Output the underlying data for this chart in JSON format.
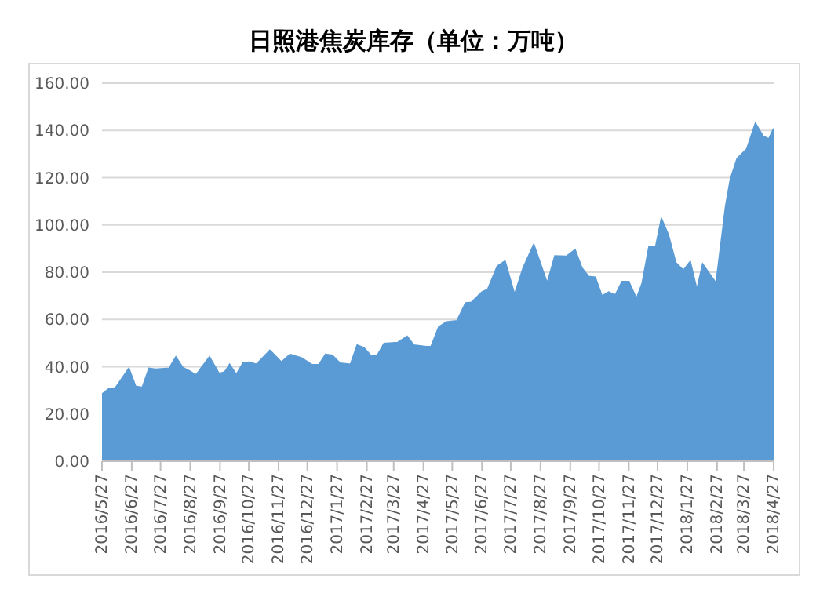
{
  "chart_data": {
    "type": "area",
    "title": "日照港焦炭库存（单位：万吨）",
    "x": [
      "2016-05-27",
      "2016-06-03",
      "2016-06-10",
      "2016-06-24",
      "2016-07-01",
      "2016-07-08",
      "2016-07-15",
      "2016-07-22",
      "2016-08-05",
      "2016-08-12",
      "2016-08-19",
      "2016-08-26",
      "2016-09-02",
      "2016-09-16",
      "2016-09-26",
      "2016-10-02",
      "2016-10-07",
      "2016-10-14",
      "2016-10-21",
      "2016-10-27",
      "2016-11-04",
      "2016-11-18",
      "2016-11-30",
      "2016-12-09",
      "2016-12-21",
      "2017-01-01",
      "2017-01-08",
      "2017-01-15",
      "2017-01-22",
      "2017-01-30",
      "2017-02-10",
      "2017-02-17",
      "2017-02-24",
      "2017-03-03",
      "2017-03-10",
      "2017-03-17",
      "2017-03-31",
      "2017-04-10",
      "2017-04-17",
      "2017-04-30",
      "2017-05-05",
      "2017-05-13",
      "2017-05-21",
      "2017-06-01",
      "2017-06-10",
      "2017-06-16",
      "2017-06-27",
      "2017-07-03",
      "2017-07-13",
      "2017-07-21",
      "2017-07-31",
      "2017-08-09",
      "2017-08-20",
      "2017-09-03",
      "2017-09-11",
      "2017-09-23",
      "2017-10-02",
      "2017-10-09",
      "2017-10-16",
      "2017-10-23",
      "2017-10-30",
      "2017-11-06",
      "2017-11-13",
      "2017-11-20",
      "2017-11-27",
      "2017-12-05",
      "2017-12-11",
      "2017-12-18",
      "2017-12-25",
      "2017-12-31",
      "2018-01-07",
      "2018-01-15",
      "2018-01-23",
      "2018-01-30",
      "2018-02-06",
      "2018-02-12",
      "2018-02-26",
      "2018-03-08",
      "2018-03-13",
      "2018-03-20",
      "2018-03-30",
      "2018-04-08",
      "2018-04-16",
      "2018-04-22",
      "2018-04-27"
    ],
    "values": [
      28.4,
      30.6,
      31,
      39.3,
      31.7,
      31.2,
      39.3,
      38.9,
      39.3,
      44.1,
      39.7,
      38.2,
      36.5,
      44.1,
      37.1,
      37.8,
      41,
      36.7,
      41.5,
      41.9,
      41,
      46.9,
      41.9,
      45.2,
      43.7,
      40.8,
      40.8,
      45.2,
      44.8,
      41.5,
      41,
      49.1,
      48,
      44.8,
      44.8,
      49.8,
      50.2,
      52.8,
      49.1,
      48.5,
      48.5,
      56.8,
      58.9,
      59.4,
      67,
      67.2,
      71.6,
      72.7,
      82.5,
      84.7,
      70.5,
      81.9,
      91.7,
      75.3,
      86.9,
      86.7,
      89.5,
      81.9,
      78.2,
      77.9,
      69.9,
      71.6,
      70.3,
      76,
      76,
      68.8,
      75.3,
      90.6,
      90.6,
      102.6,
      96.1,
      84,
      80.8,
      84.5,
      72.5,
      83.4,
      75.3,
      108,
      119.4,
      128.1,
      132.1,
      143,
      137.5,
      136.4,
      140.8
    ],
    "color": "#5b9bd5",
    "xlim": [
      "2016-05-27",
      "2018-04-27"
    ],
    "xticks": [
      {
        "value": "2016-05-27",
        "label": "2016/5/27"
      },
      {
        "value": "2016-06-27",
        "label": "2016/6/27"
      },
      {
        "value": "2016-07-27",
        "label": "2016/7/27"
      },
      {
        "value": "2016-08-27",
        "label": "2016/8/27"
      },
      {
        "value": "2016-09-27",
        "label": "2016/9/27"
      },
      {
        "value": "2016-10-27",
        "label": "2016/10/27"
      },
      {
        "value": "2016-11-27",
        "label": "2016/11/27"
      },
      {
        "value": "2016-12-27",
        "label": "2016/12/27"
      },
      {
        "value": "2017-01-27",
        "label": "2017/1/27"
      },
      {
        "value": "2017-02-27",
        "label": "2017/2/27"
      },
      {
        "value": "2017-03-27",
        "label": "2017/3/27"
      },
      {
        "value": "2017-04-27",
        "label": "2017/4/27"
      },
      {
        "value": "2017-05-27",
        "label": "2017/5/27"
      },
      {
        "value": "2017-06-27",
        "label": "2017/6/27"
      },
      {
        "value": "2017-07-27",
        "label": "2017/7/27"
      },
      {
        "value": "2017-08-27",
        "label": "2017/8/27"
      },
      {
        "value": "2017-09-27",
        "label": "2017/9/27"
      },
      {
        "value": "2017-10-27",
        "label": "2017/10/27"
      },
      {
        "value": "2017-11-27",
        "label": "2017/11/27"
      },
      {
        "value": "2017-12-27",
        "label": "2017/12/27"
      },
      {
        "value": "2018-01-27",
        "label": "2018/1/27"
      },
      {
        "value": "2018-02-27",
        "label": "2018/2/27"
      },
      {
        "value": "2018-03-27",
        "label": "2018/3/27"
      },
      {
        "value": "2018-04-27",
        "label": "2018/4/27"
      }
    ],
    "ylim": [
      0,
      160
    ],
    "yticks": [
      {
        "value": 0,
        "label": "0.00"
      },
      {
        "value": 20,
        "label": "20.00"
      },
      {
        "value": 40,
        "label": "40.00"
      },
      {
        "value": 60,
        "label": "60.00"
      },
      {
        "value": 80,
        "label": "80.00"
      },
      {
        "value": 100,
        "label": "100.00"
      },
      {
        "value": 120,
        "label": "120.00"
      },
      {
        "value": 140,
        "label": "140.00"
      },
      {
        "value": 160,
        "label": "160.00"
      }
    ],
    "grid": "y",
    "legend": false
  }
}
